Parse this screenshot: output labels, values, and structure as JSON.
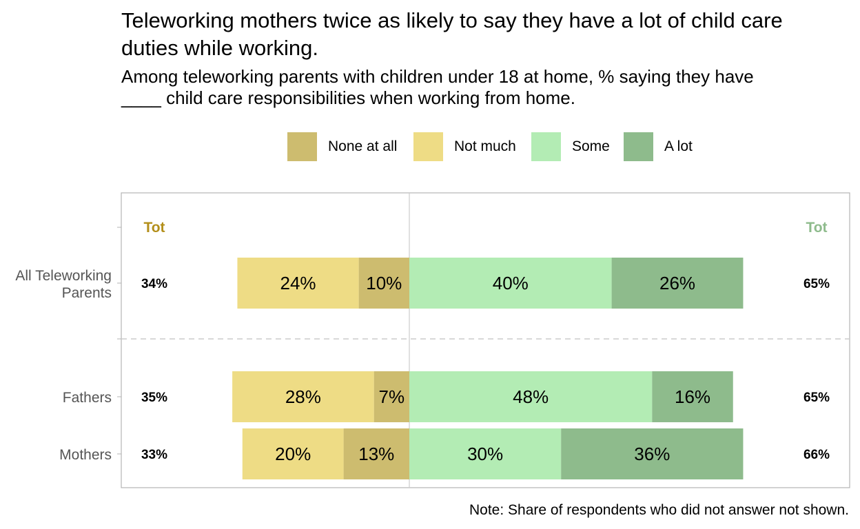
{
  "title": "Teleworking mothers twice as likely to say they have a lot of child care duties while working.",
  "subtitle": "Among teleworking parents with children under 18 at home, % saying they have ____ child care responsibilities when working from home.",
  "note": "Note: Share of respondents who did not answer not shown.",
  "colors": {
    "none_at_all": "#cdbc6f",
    "not_much": "#eedc85",
    "some": "#b3ecb4",
    "a_lot": "#8ebb8c",
    "tot_negative": "#b38f1a",
    "tot_positive": "#8ebb8c"
  },
  "legend": [
    {
      "label": "None at all",
      "color": "#cdbc6f"
    },
    {
      "label": "Not much",
      "color": "#eedc85"
    },
    {
      "label": "Some",
      "color": "#b3ecb4"
    },
    {
      "label": "A lot",
      "color": "#8ebb8c"
    }
  ],
  "chart_data": {
    "type": "bar",
    "orientation": "horizontal",
    "stacked": "diverging",
    "categories": [
      "All Teleworking Parents",
      "Fathers",
      "Mothers"
    ],
    "series": [
      {
        "name": "None at all",
        "side": "negative",
        "values": [
          10,
          7,
          13
        ]
      },
      {
        "name": "Not much",
        "side": "negative",
        "values": [
          24,
          28,
          20
        ]
      },
      {
        "name": "Some",
        "side": "positive",
        "values": [
          40,
          48,
          30
        ]
      },
      {
        "name": "A lot",
        "side": "positive",
        "values": [
          26,
          16,
          36
        ]
      }
    ],
    "totals_header": {
      "negative": "Tot",
      "positive": "Tot"
    },
    "totals_negative": [
      34,
      35,
      33
    ],
    "totals_positive": [
      65,
      65,
      66
    ],
    "value_format": "%",
    "group_separator_after": 0,
    "legend_position": "top",
    "grid": false
  }
}
